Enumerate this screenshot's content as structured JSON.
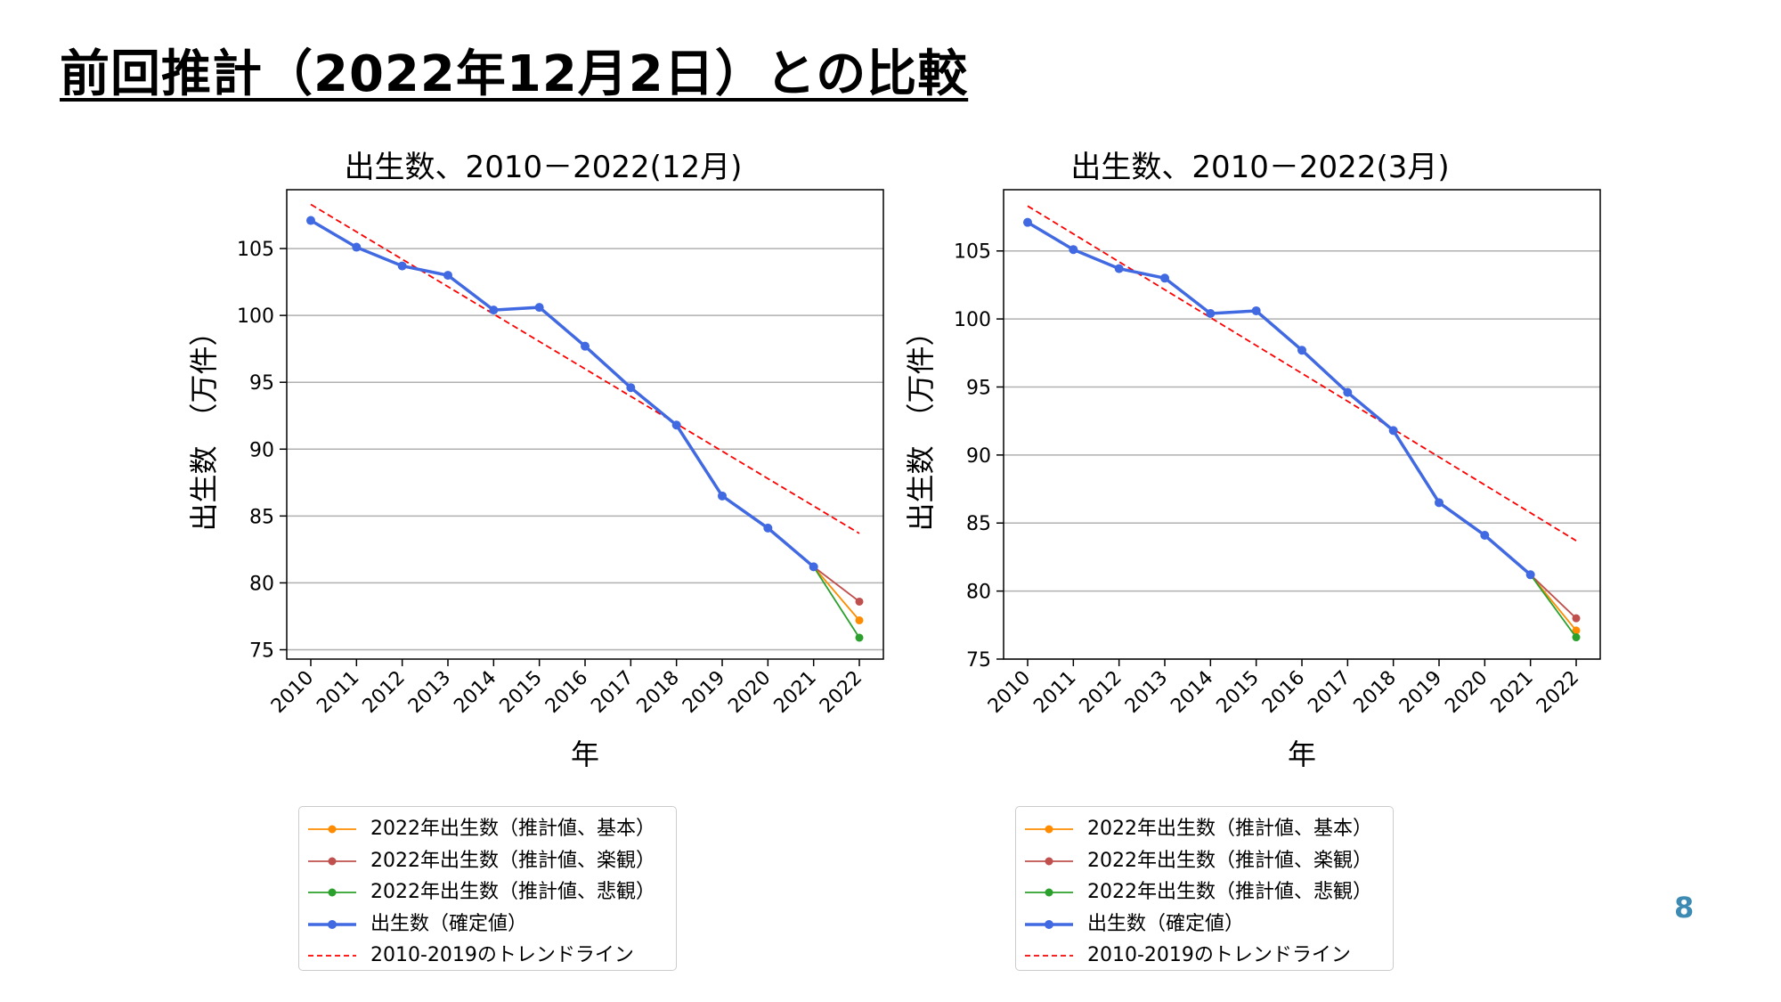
{
  "slide": {
    "title": "前回推計（2022年12月2日）との比較",
    "page_number": "8"
  },
  "chart_data": [
    {
      "type": "line",
      "title": "出生数、2010－2022(12月)",
      "xlabel": "年",
      "ylabel": "出生数　（万件）",
      "categories": [
        "2010",
        "2011",
        "2012",
        "2013",
        "2014",
        "2015",
        "2016",
        "2017",
        "2018",
        "2019",
        "2020",
        "2021",
        "2022"
      ],
      "ylim": [
        74.3,
        109.4
      ],
      "yticks": [
        75,
        80,
        85,
        90,
        95,
        100,
        105
      ],
      "grid": "horizontal",
      "legend_position": "below",
      "series": [
        {
          "name": "2022年出生数（推計値、基本）",
          "color": "#ff8c00",
          "style": "solid-marker",
          "x": [
            "2021",
            "2022"
          ],
          "values": [
            81.2,
            77.2
          ]
        },
        {
          "name": "2022年出生数（推計値、楽観）",
          "color": "#c0504d",
          "style": "solid-marker",
          "x": [
            "2021",
            "2022"
          ],
          "values": [
            81.2,
            78.6
          ]
        },
        {
          "name": "2022年出生数（推計値、悲観）",
          "color": "#2ca02c",
          "style": "solid-marker",
          "x": [
            "2021",
            "2022"
          ],
          "values": [
            81.2,
            75.9
          ]
        },
        {
          "name": "出生数（確定値）",
          "color": "#4169e1",
          "style": "solid-marker-thick",
          "x": [
            "2010",
            "2011",
            "2012",
            "2013",
            "2014",
            "2015",
            "2016",
            "2017",
            "2018",
            "2019",
            "2020",
            "2021"
          ],
          "values": [
            107.1,
            105.1,
            103.7,
            103.0,
            100.4,
            100.6,
            97.7,
            94.6,
            91.8,
            86.5,
            84.1,
            81.2
          ]
        },
        {
          "name": "2010-2019のトレンドライン",
          "color": "#ff0000",
          "style": "dashed",
          "x": [
            "2010",
            "2022"
          ],
          "values": [
            108.3,
            83.7
          ]
        }
      ]
    },
    {
      "type": "line",
      "title": "出生数、2010－2022(3月)",
      "xlabel": "年",
      "ylabel": "出生数　（万件）",
      "categories": [
        "2010",
        "2011",
        "2012",
        "2013",
        "2014",
        "2015",
        "2016",
        "2017",
        "2018",
        "2019",
        "2020",
        "2021",
        "2022"
      ],
      "ylim": [
        75.0,
        109.5
      ],
      "yticks": [
        75,
        80,
        85,
        90,
        95,
        100,
        105
      ],
      "grid": "horizontal",
      "legend_position": "below",
      "series": [
        {
          "name": "2022年出生数（推計値、基本）",
          "color": "#ff8c00",
          "style": "solid-marker",
          "x": [
            "2021",
            "2022"
          ],
          "values": [
            81.2,
            77.1
          ]
        },
        {
          "name": "2022年出生数（推計値、楽観）",
          "color": "#c0504d",
          "style": "solid-marker",
          "x": [
            "2021",
            "2022"
          ],
          "values": [
            81.2,
            78.0
          ]
        },
        {
          "name": "2022年出生数（推計値、悲観）",
          "color": "#2ca02c",
          "style": "solid-marker",
          "x": [
            "2021",
            "2022"
          ],
          "values": [
            81.2,
            76.6
          ]
        },
        {
          "name": "出生数（確定値）",
          "color": "#4169e1",
          "style": "solid-marker-thick",
          "x": [
            "2010",
            "2011",
            "2012",
            "2013",
            "2014",
            "2015",
            "2016",
            "2017",
            "2018",
            "2019",
            "2020",
            "2021"
          ],
          "values": [
            107.1,
            105.1,
            103.7,
            103.0,
            100.4,
            100.6,
            97.7,
            94.6,
            91.8,
            86.5,
            84.1,
            81.2
          ]
        },
        {
          "name": "2010-2019のトレンドライン",
          "color": "#ff0000",
          "style": "dashed",
          "x": [
            "2010",
            "2022"
          ],
          "values": [
            108.3,
            83.7
          ]
        }
      ]
    }
  ]
}
